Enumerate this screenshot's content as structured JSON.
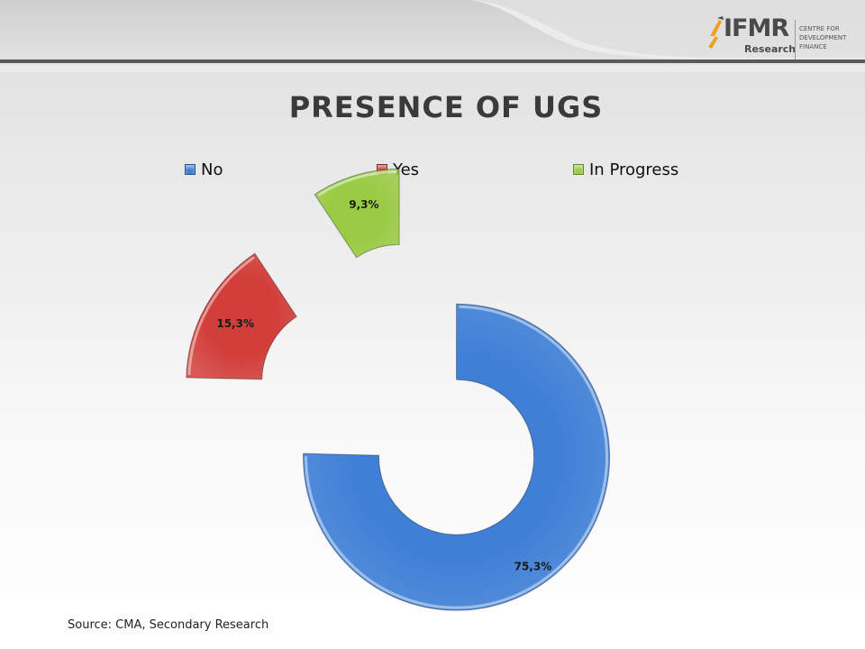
{
  "logo": {
    "brand": "IFMR",
    "sub": "Research",
    "tagline_lines": [
      "CENTRE FOR",
      "DEVELOPMENT",
      "FINANCE"
    ]
  },
  "chart_data": {
    "type": "pie",
    "style": "exploded doughnut",
    "title": "PRESENCE OF UGS",
    "legend_position": "top",
    "categories": [
      "No",
      "Yes",
      "In Progress"
    ],
    "values": [
      75.3,
      15.3,
      9.3
    ],
    "data_labels": [
      "75,3%",
      "15,3%",
      "9,3%"
    ],
    "colors": [
      "#3f7fd6",
      "#d23f3b",
      "#9acb45"
    ]
  },
  "footer": {
    "source": "Source: CMA, Secondary Research"
  }
}
